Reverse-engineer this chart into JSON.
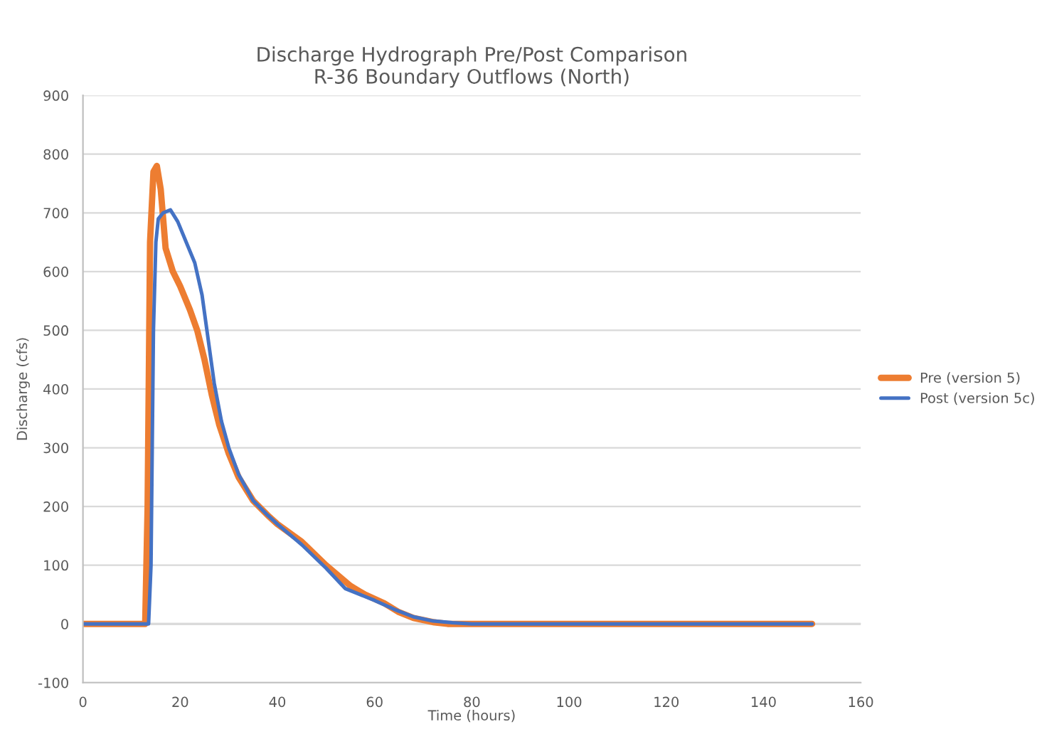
{
  "chart_data": {
    "type": "line",
    "title": "Discharge Hydrograph Pre/Post Comparison\nR-36 Boundary Outflows (North)",
    "xlabel": "Time (hours)",
    "ylabel": "Discharge (cfs)",
    "xlim": [
      0,
      160
    ],
    "xticks": [
      0,
      20,
      40,
      60,
      80,
      100,
      120,
      140,
      160
    ],
    "ylim": [
      -100,
      900
    ],
    "yticks": [
      -100,
      0,
      100,
      200,
      300,
      400,
      500,
      600,
      700,
      800,
      900
    ],
    "grid": "y",
    "legend": "right",
    "line_style": "solid",
    "marker": "none",
    "series": [
      {
        "name": "Pre (version 5)",
        "color": "#ed7d31",
        "x": [
          0,
          12.8,
          13.3,
          13.8,
          14.5,
          15.2,
          16,
          17,
          18.5,
          20,
          22,
          23.5,
          25,
          26.5,
          28,
          30,
          32,
          35,
          38,
          40,
          45,
          50,
          55,
          58,
          62,
          65,
          68,
          72,
          75,
          80,
          100,
          150
        ],
        "values": [
          0,
          0,
          200,
          650,
          770,
          780,
          740,
          640,
          600,
          575,
          535,
          500,
          450,
          390,
          340,
          290,
          250,
          210,
          185,
          170,
          140,
          100,
          65,
          50,
          35,
          20,
          10,
          3,
          0,
          0,
          0,
          0
        ]
      },
      {
        "name": "Post (version 5c)",
        "color": "#4472c4",
        "x": [
          0,
          13.5,
          14,
          14.5,
          15,
          15.5,
          16.5,
          18,
          19.5,
          21,
          23,
          24.5,
          25.5,
          27,
          28.5,
          30,
          32,
          35,
          38,
          40,
          45,
          50,
          54,
          57,
          60,
          64,
          68,
          72,
          76,
          80,
          100,
          150
        ],
        "values": [
          0,
          0,
          100,
          500,
          650,
          690,
          700,
          705,
          685,
          655,
          615,
          560,
          500,
          410,
          345,
          300,
          255,
          210,
          185,
          170,
          135,
          95,
          60,
          50,
          40,
          25,
          12,
          5,
          2,
          0,
          0,
          0
        ]
      }
    ]
  }
}
